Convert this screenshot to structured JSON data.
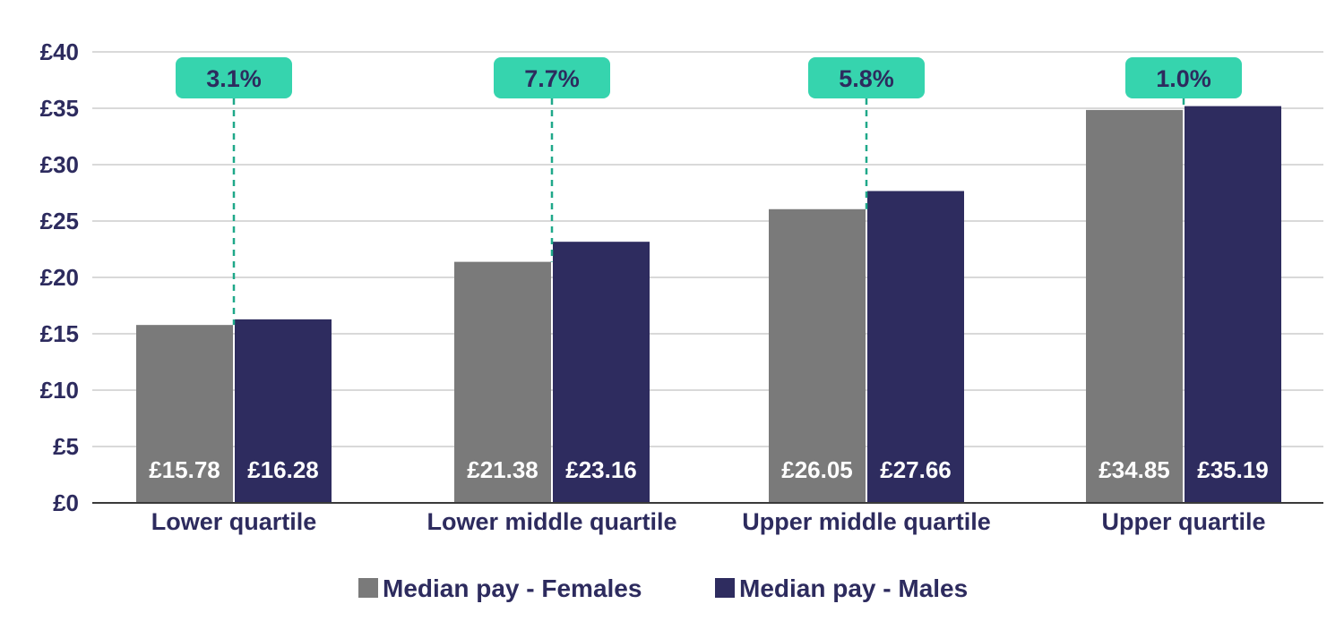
{
  "chart_data": {
    "type": "bar",
    "categories": [
      "Lower quartile",
      "Lower middle quartile",
      "Upper middle quartile",
      "Upper quartile"
    ],
    "series": [
      {
        "name": "Median pay - Females",
        "values": [
          15.78,
          21.38,
          26.05,
          34.85
        ],
        "labels": [
          "£15.78",
          "£21.38",
          "£26.05",
          "£34.85"
        ],
        "color": "#7a7a7a"
      },
      {
        "name": "Median pay - Males",
        "values": [
          16.28,
          23.16,
          27.66,
          35.19
        ],
        "labels": [
          "£16.28",
          "£23.16",
          "£27.66",
          "£35.19"
        ],
        "color": "#2e2c5f"
      }
    ],
    "annotations": [
      "3.1%",
      "7.7%",
      "5.8%",
      "1.0%"
    ],
    "annotation_color": "#36d4ae",
    "ylim": [
      0,
      40
    ],
    "yticks": [
      0,
      5,
      10,
      15,
      20,
      25,
      30,
      35,
      40
    ],
    "ytick_labels": [
      "£0",
      "£5",
      "£10",
      "£15",
      "£20",
      "£25",
      "£30",
      "£35",
      "£40"
    ],
    "grid": true,
    "legend_position": "bottom-center",
    "title": "",
    "xlabel": "",
    "ylabel": ""
  }
}
